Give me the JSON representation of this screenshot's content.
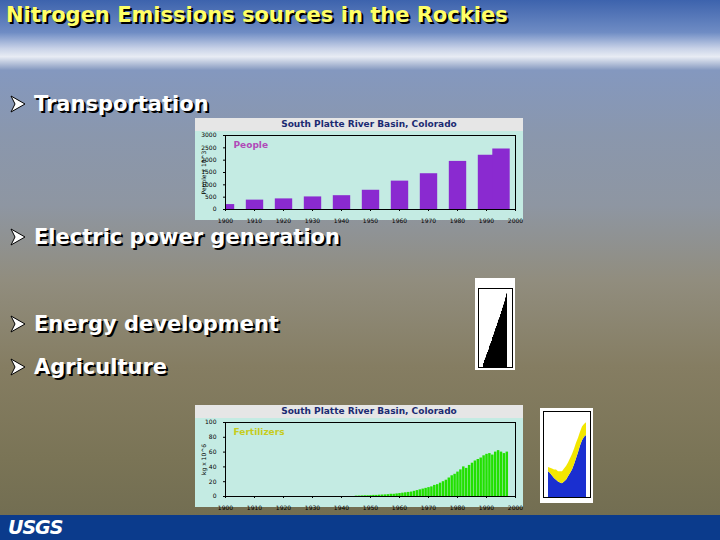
{
  "slide": {
    "title": "Nitrogen Emissions sources in the Rockies",
    "bullets": [
      "Transportation",
      "Electric power generation",
      "Energy development",
      "Agriculture"
    ],
    "logo": "USGS"
  },
  "chart_data": [
    {
      "type": "bar",
      "title": "South Platte River Basin, Colorado",
      "annotation": "People",
      "y_label": "People x 10^3",
      "x": [
        1900,
        1910,
        1920,
        1930,
        1940,
        1950,
        1960,
        1970,
        1980,
        1990,
        1995
      ],
      "values": [
        200,
        380,
        430,
        510,
        560,
        780,
        1150,
        1450,
        1950,
        2200,
        2450
      ],
      "color": "#8a2ad0",
      "xlim": [
        1900,
        2000
      ],
      "xticks": [
        1900,
        1910,
        1920,
        1930,
        1940,
        1950,
        1960,
        1970,
        1980,
        1990,
        2000
      ],
      "ylim": [
        0,
        3000
      ],
      "yticks": [
        0,
        500,
        1000,
        1500,
        2000,
        2500,
        3000
      ]
    },
    {
      "type": "bar",
      "categories": [
        null,
        null,
        null,
        null,
        null,
        null,
        null,
        null,
        null,
        null,
        null,
        null,
        null,
        null,
        null,
        null,
        null,
        null,
        null,
        null,
        null,
        null,
        null,
        null
      ],
      "values": [
        5,
        9,
        12,
        16,
        19,
        22,
        27,
        30,
        33,
        38,
        41,
        45,
        49,
        52,
        56,
        60,
        63,
        67,
        71,
        75,
        79,
        83,
        88,
        93
      ],
      "color": "#000000",
      "ylim": [
        0,
        100
      ],
      "tick_labels": false
    },
    {
      "type": "bar",
      "title": "South Platte River Basin, Colorado",
      "annotation": "Fertilizers",
      "y_label": "kg x 10^6",
      "x": [
        1945,
        1946,
        1947,
        1948,
        1949,
        1950,
        1951,
        1952,
        1953,
        1954,
        1955,
        1956,
        1957,
        1958,
        1959,
        1960,
        1961,
        1962,
        1963,
        1964,
        1965,
        1966,
        1967,
        1968,
        1969,
        1970,
        1971,
        1972,
        1973,
        1974,
        1975,
        1976,
        1977,
        1978,
        1979,
        1980,
        1981,
        1982,
        1983,
        1984,
        1985,
        1986,
        1987,
        1988,
        1989,
        1990,
        1991,
        1992,
        1993,
        1994,
        1995,
        1996,
        1997
      ],
      "values": [
        0.5,
        0.6,
        0.8,
        1,
        1,
        1.2,
        1.5,
        1.5,
        1.8,
        2,
        2.2,
        2.5,
        3,
        3,
        3.5,
        4,
        4.5,
        5,
        5.5,
        6,
        7,
        8,
        9,
        10,
        11,
        12,
        13,
        15,
        16,
        18,
        20,
        22,
        25,
        28,
        30,
        33,
        36,
        40,
        38,
        42,
        45,
        48,
        50,
        52,
        55,
        57,
        58,
        56,
        60,
        62,
        60,
        58,
        60
      ],
      "color": "#22e000",
      "xlim": [
        1900,
        2000
      ],
      "xticks": [
        1900,
        1910,
        1920,
        1930,
        1940,
        1950,
        1960,
        1970,
        1980,
        1990,
        2000
      ],
      "ylim": [
        0,
        100
      ],
      "yticks": [
        0,
        20,
        40,
        60,
        80,
        100
      ]
    },
    {
      "type": "area",
      "stacked": true,
      "categories": [
        null,
        null,
        null,
        null,
        null,
        null,
        null,
        null,
        null,
        null,
        null,
        null,
        null,
        null,
        null,
        null,
        null,
        null,
        null,
        null
      ],
      "series": [
        {
          "color": "#1a2fd0",
          "values": [
            30,
            28,
            25,
            22,
            20,
            18,
            17,
            16,
            18,
            20,
            24,
            28,
            32,
            38,
            45,
            52,
            60,
            66,
            70,
            72
          ]
        },
        {
          "color": "#f2e600",
          "values": [
            5,
            6,
            8,
            10,
            12,
            12,
            13,
            14,
            15,
            16,
            16,
            17,
            18,
            18,
            18,
            17,
            16,
            16,
            15,
            15
          ]
        }
      ],
      "ylim": [
        0,
        100
      ],
      "tick_labels": false
    }
  ]
}
